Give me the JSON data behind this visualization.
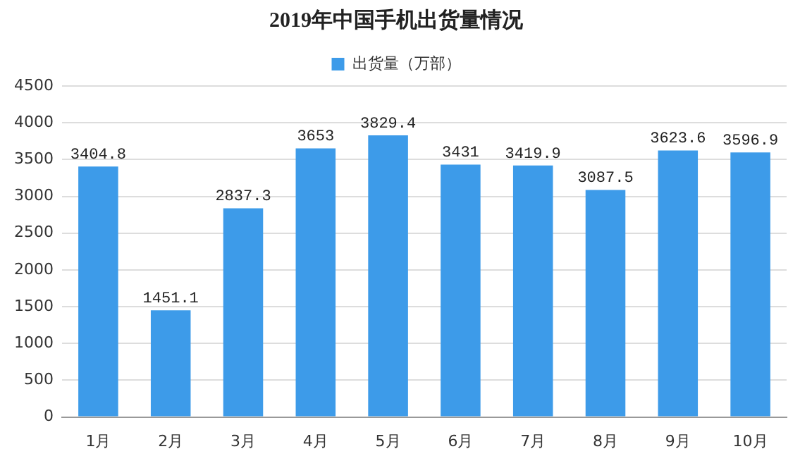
{
  "chart_data": {
    "type": "bar",
    "title": "2019年中国手机出货量情况",
    "categories": [
      "1月",
      "2月",
      "3月",
      "4月",
      "5月",
      "6月",
      "7月",
      "8月",
      "9月",
      "10月"
    ],
    "series": [
      {
        "name": "出货量（万部）",
        "color": "#3d9be9",
        "values": [
          3404.8,
          1451.1,
          2837.3,
          3653,
          3829.4,
          3431,
          3419.9,
          3087.5,
          3623.6,
          3596.9
        ]
      }
    ],
    "ylim": [
      0,
      4500
    ],
    "yticks": [
      0,
      500,
      1000,
      1500,
      2000,
      2500,
      3000,
      3500,
      4000,
      4500
    ],
    "grid": "y",
    "legend": "top",
    "data_labels": true
  }
}
